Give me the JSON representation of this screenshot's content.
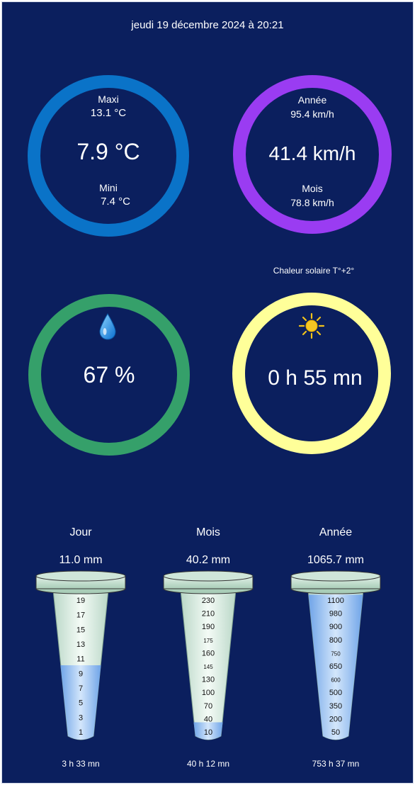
{
  "header": {
    "datetime": "jeudi 19 décembre 2024 à 20:21"
  },
  "colors": {
    "background": "#0b1f5e",
    "temperature_ring": "#0a73c8",
    "wind_ring": "#9a3cf2",
    "humidity_ring": "#35a06a",
    "sun_ring": "#ffff99",
    "sun_icon": "#f2c21a",
    "drop_icon": "#1b8fe0"
  },
  "temperature": {
    "max_label": "Maxi",
    "max_value": "13.1 °C",
    "current": "7.9 °C",
    "min_label": "Mini",
    "min_value": "7.4 °C"
  },
  "wind": {
    "year_label": "Année",
    "year_value": "95.4 km/h",
    "current": "41.4 km/h",
    "month_label": "Mois",
    "month_value": "78.8 km/h"
  },
  "humidity": {
    "icon": "water-drop-icon",
    "value": "67 %"
  },
  "sunshine": {
    "caption": "Chaleur solaire T°+2°",
    "icon": "sun-icon",
    "value": "0 h 55 mn"
  },
  "rain": {
    "day": {
      "label": "Jour",
      "amount": "11.0 mm",
      "duration": "3 h 33 mn",
      "fill_fraction": 0.5,
      "ticks": [
        "19",
        "17",
        "15",
        "13",
        "11",
        "9",
        "7",
        "5",
        "3",
        "1"
      ]
    },
    "month": {
      "label": "Mois",
      "amount": "40.2 mm",
      "duration": "40 h 12 mn",
      "fill_fraction": 0.12,
      "ticks": [
        "230",
        "210",
        "190",
        "175",
        "160",
        "145",
        "130",
        "100",
        "70",
        "40",
        "10"
      ]
    },
    "year": {
      "label": "Année",
      "amount": "1065.7 mm",
      "duration": "753 h 37 mn",
      "fill_fraction": 0.97,
      "ticks": [
        "1100",
        "980",
        "900",
        "800",
        "750",
        "650",
        "600",
        "500",
        "350",
        "200",
        "50"
      ]
    }
  }
}
